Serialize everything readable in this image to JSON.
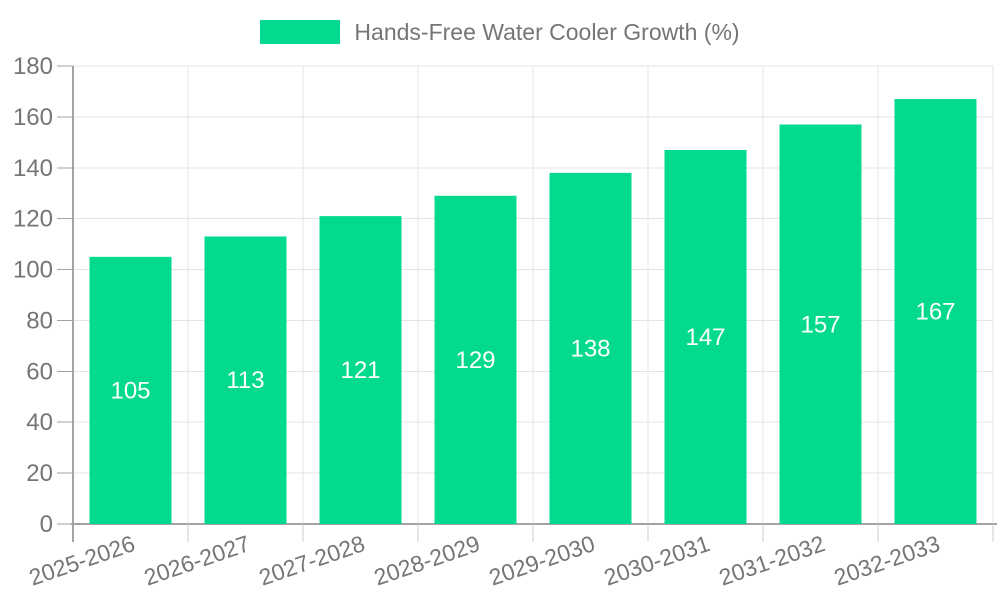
{
  "chart_data": {
    "type": "bar",
    "title": "Hands-Free Water Cooler Growth (%)",
    "categories": [
      "2025-2026",
      "2026-2027",
      "2027-2028",
      "2028-2029",
      "2029-2030",
      "2030-2031",
      "2031-2032",
      "2032-2033"
    ],
    "values": [
      105,
      113,
      121,
      129,
      138,
      147,
      157,
      167
    ],
    "xlabel": "",
    "ylabel": "",
    "ylim": [
      0,
      180
    ],
    "yticks": [
      0,
      20,
      40,
      60,
      80,
      100,
      120,
      140,
      160,
      180
    ],
    "grid": true,
    "legend_position": "top-center",
    "x_label_rotation_deg": -19,
    "bar_labels_inside": true,
    "colors": {
      "bar": "#03da8e",
      "bar_value_text": "#ffffff",
      "axis_label": "#757575",
      "legend_text": "#757575",
      "grid_line": "#e4e4e4",
      "axis_line": "#a3a3a3",
      "x_tick": "#cccccc",
      "background": "#ffffff"
    }
  }
}
